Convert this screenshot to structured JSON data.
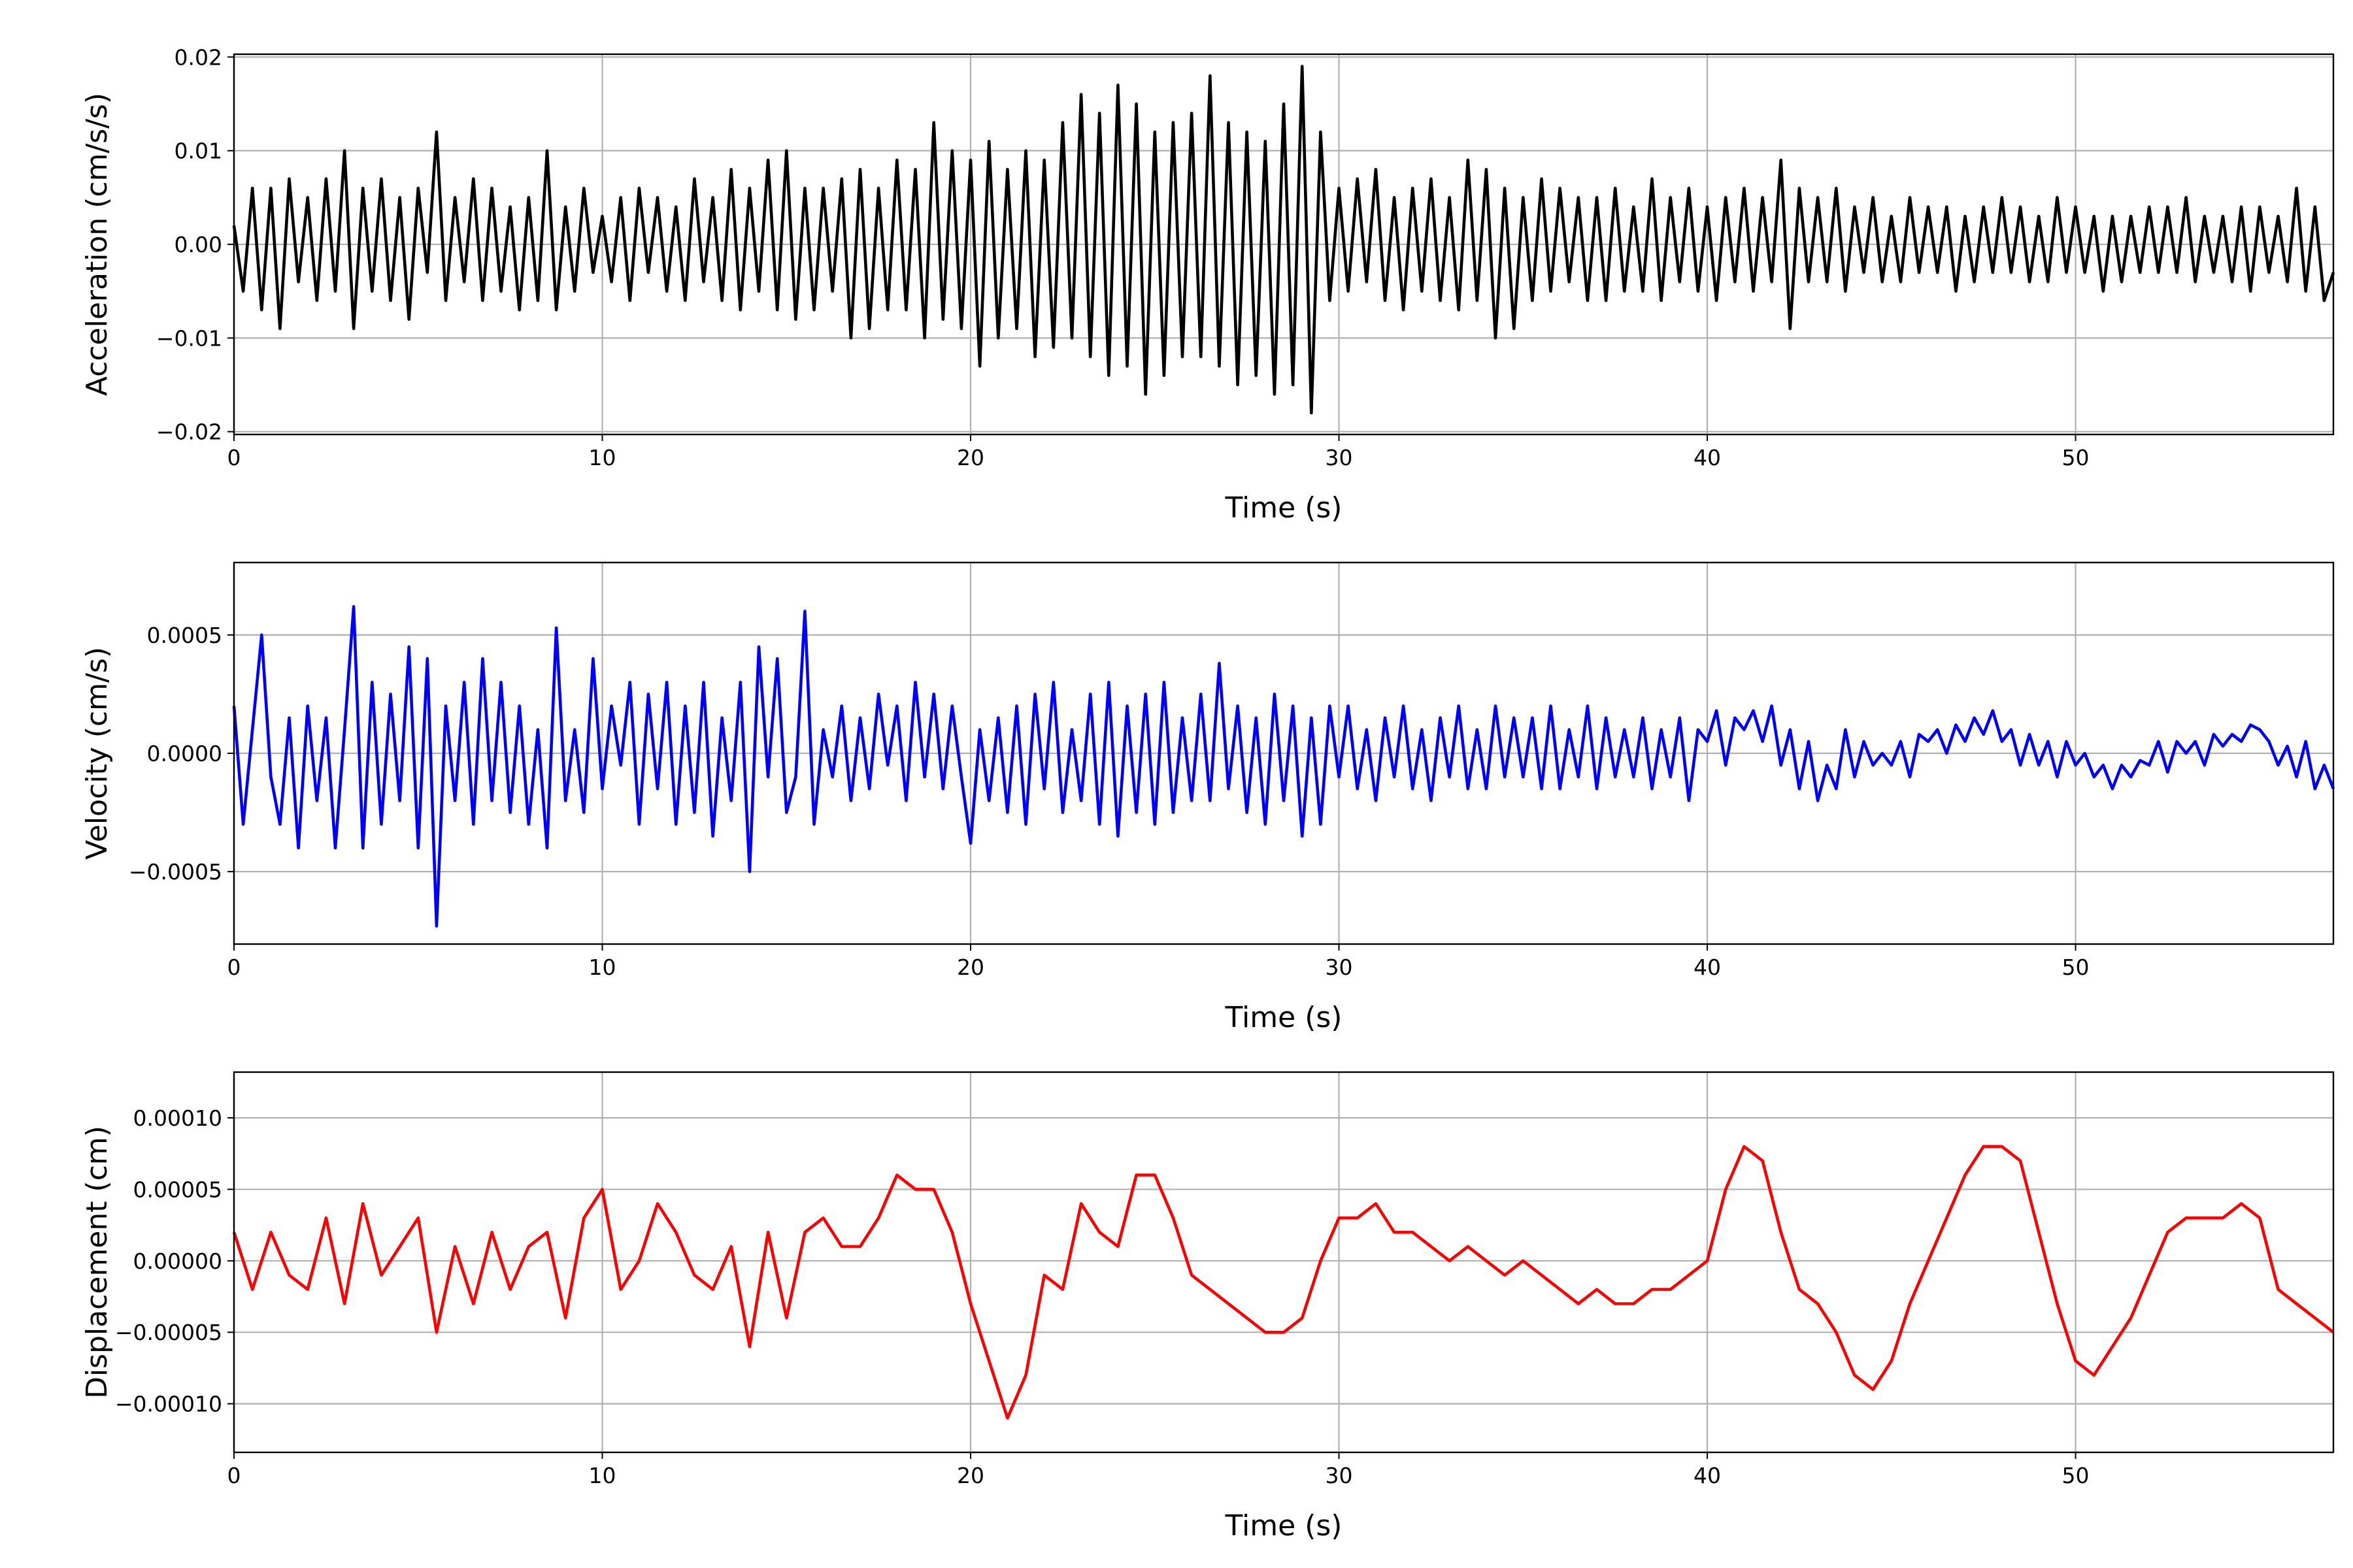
{
  "chart_data": [
    {
      "type": "line",
      "title": "",
      "xlabel": "Time (s)",
      "ylabel": "Acceleration (cm/s/s)",
      "color": "#000000",
      "xlim": [
        0,
        57
      ],
      "ylim": [
        -0.0203,
        0.0203
      ],
      "grid": true,
      "xticks": [
        0,
        10,
        20,
        30,
        40,
        50
      ],
      "xtick_labels": [
        "0",
        "10",
        "20",
        "30",
        "40",
        "50"
      ],
      "yticks": [
        0.02,
        0.01,
        0.0,
        -0.01,
        -0.02
      ],
      "ytick_labels": [
        "0.02",
        "0.01",
        "0.00",
        "−0.01",
        "−0.02"
      ],
      "dt": 0.25,
      "t0": 0,
      "values": [
        0.002,
        -0.005,
        0.006,
        -0.007,
        0.006,
        -0.009,
        0.007,
        -0.004,
        0.005,
        -0.006,
        0.007,
        -0.005,
        0.01,
        -0.009,
        0.006,
        -0.005,
        0.007,
        -0.006,
        0.005,
        -0.008,
        0.006,
        -0.003,
        0.012,
        -0.006,
        0.005,
        -0.004,
        0.007,
        -0.006,
        0.006,
        -0.005,
        0.004,
        -0.007,
        0.005,
        -0.006,
        0.01,
        -0.007,
        0.004,
        -0.005,
        0.006,
        -0.003,
        0.003,
        -0.004,
        0.005,
        -0.006,
        0.006,
        -0.003,
        0.005,
        -0.005,
        0.004,
        -0.006,
        0.007,
        -0.004,
        0.005,
        -0.006,
        0.008,
        -0.007,
        0.006,
        -0.005,
        0.009,
        -0.007,
        0.01,
        -0.008,
        0.006,
        -0.007,
        0.006,
        -0.005,
        0.007,
        -0.01,
        0.008,
        -0.009,
        0.006,
        -0.007,
        0.009,
        -0.007,
        0.008,
        -0.01,
        0.013,
        -0.008,
        0.01,
        -0.009,
        0.009,
        -0.013,
        0.011,
        -0.01,
        0.008,
        -0.009,
        0.01,
        -0.012,
        0.009,
        -0.011,
        0.013,
        -0.01,
        0.016,
        -0.012,
        0.014,
        -0.014,
        0.017,
        -0.013,
        0.015,
        -0.016,
        0.012,
        -0.014,
        0.013,
        -0.012,
        0.014,
        -0.012,
        0.018,
        -0.013,
        0.013,
        -0.015,
        0.012,
        -0.014,
        0.011,
        -0.016,
        0.015,
        -0.015,
        0.019,
        -0.018,
        0.012,
        -0.006,
        0.006,
        -0.005,
        0.007,
        -0.004,
        0.008,
        -0.006,
        0.005,
        -0.007,
        0.006,
        -0.005,
        0.007,
        -0.006,
        0.005,
        -0.007,
        0.009,
        -0.006,
        0.008,
        -0.01,
        0.006,
        -0.009,
        0.005,
        -0.006,
        0.007,
        -0.005,
        0.006,
        -0.004,
        0.005,
        -0.006,
        0.005,
        -0.006,
        0.006,
        -0.005,
        0.004,
        -0.005,
        0.007,
        -0.006,
        0.005,
        -0.004,
        0.006,
        -0.005,
        0.004,
        -0.006,
        0.005,
        -0.004,
        0.006,
        -0.005,
        0.005,
        -0.004,
        0.009,
        -0.009,
        0.006,
        -0.004,
        0.005,
        -0.004,
        0.006,
        -0.005,
        0.004,
        -0.003,
        0.005,
        -0.004,
        0.003,
        -0.004,
        0.005,
        -0.003,
        0.004,
        -0.003,
        0.004,
        -0.005,
        0.003,
        -0.004,
        0.004,
        -0.003,
        0.005,
        -0.003,
        0.004,
        -0.004,
        0.003,
        -0.004,
        0.005,
        -0.003,
        0.004,
        -0.003,
        0.003,
        -0.005,
        0.003,
        -0.004,
        0.003,
        -0.003,
        0.004,
        -0.003,
        0.004,
        -0.003,
        0.005,
        -0.004,
        0.003,
        -0.003,
        0.003,
        -0.004,
        0.004,
        -0.005,
        0.004,
        -0.003,
        0.003,
        -0.004,
        0.006,
        -0.005,
        0.004,
        -0.006,
        -0.003
      ]
    },
    {
      "type": "line",
      "title": "",
      "xlabel": "Time (s)",
      "ylabel": "Velocity (cm/s)",
      "color": "#0000ff",
      "xlim": [
        0,
        57
      ],
      "ylim": [
        -0.000806,
        0.000806
      ],
      "grid": true,
      "xticks": [
        0,
        10,
        20,
        30,
        40,
        50
      ],
      "xtick_labels": [
        "0",
        "10",
        "20",
        "30",
        "40",
        "50"
      ],
      "yticks": [
        0.0005,
        0.0,
        -0.0005
      ],
      "ytick_labels": [
        "0.0005",
        "0.0000",
        "−0.0005"
      ],
      "dt": 0.25,
      "t0": 0,
      "values": [
        0.0002,
        -0.0003,
        0.0001,
        0.0005,
        -0.0001,
        -0.0003,
        0.00015,
        -0.0004,
        0.0002,
        -0.0002,
        0.00015,
        -0.0004,
        0.0001,
        0.00062,
        -0.0004,
        0.0003,
        -0.0003,
        0.00025,
        -0.0002,
        0.00045,
        -0.0004,
        0.0004,
        -0.00073,
        0.0002,
        -0.0002,
        0.0003,
        -0.0003,
        0.0004,
        -0.0002,
        0.0003,
        -0.00025,
        0.0002,
        -0.0003,
        0.0001,
        -0.0004,
        0.00053,
        -0.0002,
        0.0001,
        -0.00025,
        0.0004,
        -0.00015,
        0.0002,
        -5e-05,
        0.0003,
        -0.0003,
        0.00025,
        -0.00015,
        0.0003,
        -0.0003,
        0.0002,
        -0.00025,
        0.0003,
        -0.00035,
        0.00015,
        -0.0002,
        0.0003,
        -0.0005,
        0.00045,
        -0.0001,
        0.0004,
        -0.00025,
        -0.0001,
        0.0006,
        -0.0003,
        0.0001,
        -0.0001,
        0.0002,
        -0.0002,
        0.00015,
        -0.00015,
        0.00025,
        -5e-05,
        0.0002,
        -0.0002,
        0.0003,
        -0.0001,
        0.00025,
        -0.00015,
        0.0002,
        -0.0001,
        -0.00038,
        0.0001,
        -0.0002,
        0.00015,
        -0.00025,
        0.0002,
        -0.0003,
        0.00025,
        -0.00015,
        0.0003,
        -0.00025,
        0.0001,
        -0.0002,
        0.00025,
        -0.0003,
        0.0003,
        -0.00035,
        0.0002,
        -0.00025,
        0.00025,
        -0.0003,
        0.0003,
        -0.00025,
        0.00015,
        -0.0002,
        0.00025,
        -0.0002,
        0.00038,
        -0.00015,
        0.0002,
        -0.00025,
        0.00015,
        -0.0003,
        0.00025,
        -0.0002,
        0.0002,
        -0.00035,
        0.00015,
        -0.0003,
        0.0002,
        -0.0001,
        0.0002,
        -0.00015,
        0.0001,
        -0.0002,
        0.00015,
        -0.0001,
        0.0002,
        -0.00015,
        0.0001,
        -0.0002,
        0.00015,
        -0.0001,
        0.0002,
        -0.00015,
        0.0001,
        -0.00015,
        0.0002,
        -0.0001,
        0.00015,
        -0.0001,
        0.00015,
        -0.00015,
        0.0002,
        -0.00015,
        0.0001,
        -0.0001,
        0.0002,
        -0.00015,
        0.00015,
        -0.0001,
        0.0001,
        -0.0001,
        0.00015,
        -0.00015,
        0.0001,
        -0.0001,
        0.00015,
        -0.0002,
        0.0001,
        5e-05,
        0.00018,
        -5e-05,
        0.00015,
        0.0001,
        0.00018,
        5e-05,
        0.0002,
        -5e-05,
        0.0001,
        -0.00015,
        5e-05,
        -0.0002,
        -5e-05,
        -0.00015,
        0.0001,
        -0.0001,
        5e-05,
        -5e-05,
        0,
        -5e-05,
        5e-05,
        -0.0001,
        8e-05,
        5e-05,
        0.0001,
        0,
        0.00012,
        5e-05,
        0.00015,
        8e-05,
        0.00018,
        5e-05,
        0.0001,
        -5e-05,
        8e-05,
        -5e-05,
        5e-05,
        -0.0001,
        5e-05,
        -5e-05,
        0,
        -0.0001,
        -5e-05,
        -0.00015,
        -5e-05,
        -0.0001,
        -3e-05,
        -5e-05,
        5e-05,
        -8e-05,
        5e-05,
        0,
        5e-05,
        -5e-05,
        8e-05,
        3e-05,
        8e-05,
        5e-05,
        0.00012,
        0.0001,
        5e-05,
        -5e-05,
        3e-05,
        -0.0001,
        5e-05,
        -0.00015,
        -5e-05,
        -0.00015
      ]
    },
    {
      "type": "line",
      "title": "",
      "xlabel": "Time (s)",
      "ylabel": "Displacement (cm)",
      "color": "#ff0000",
      "xlim": [
        0,
        57
      ],
      "ylim": [
        -0.000134,
        0.000132
      ],
      "grid": true,
      "xticks": [
        0,
        10,
        20,
        30,
        40,
        50
      ],
      "xtick_labels": [
        "0",
        "10",
        "20",
        "30",
        "40",
        "50"
      ],
      "yticks": [
        0.0001,
        5e-05,
        0.0,
        -5e-05,
        -0.0001
      ],
      "ytick_labels": [
        "0.00010",
        "0.00005",
        "0.00000",
        "−0.00005",
        "−0.00010"
      ],
      "dt": 0.5,
      "t0": 0,
      "values": [
        2e-05,
        -2e-05,
        2e-05,
        -1e-05,
        -2e-05,
        3e-05,
        -3e-05,
        4e-05,
        -1e-05,
        1e-05,
        3e-05,
        -5e-05,
        1e-05,
        -3e-05,
        2e-05,
        -2e-05,
        1e-05,
        2e-05,
        -4e-05,
        3e-05,
        5e-05,
        -2e-05,
        0,
        4e-05,
        2e-05,
        -1e-05,
        -2e-05,
        1e-05,
        -6e-05,
        2e-05,
        -4e-05,
        2e-05,
        3e-05,
        1e-05,
        1e-05,
        3e-05,
        6e-05,
        5e-05,
        5e-05,
        2e-05,
        -3e-05,
        -7e-05,
        -0.00011,
        -8e-05,
        -1e-05,
        -2e-05,
        4e-05,
        2e-05,
        1e-05,
        6e-05,
        6e-05,
        3e-05,
        -1e-05,
        -2e-05,
        -3e-05,
        -4e-05,
        -5e-05,
        -5e-05,
        -4e-05,
        0,
        3e-05,
        3e-05,
        4e-05,
        2e-05,
        2e-05,
        1e-05,
        0,
        1e-05,
        0,
        -1e-05,
        0,
        -1e-05,
        -2e-05,
        -3e-05,
        -2e-05,
        -3e-05,
        -3e-05,
        -2e-05,
        -2e-05,
        -1e-05,
        0,
        5e-05,
        8e-05,
        7e-05,
        2e-05,
        -2e-05,
        -3e-05,
        -5e-05,
        -8e-05,
        -9e-05,
        -7e-05,
        -3e-05,
        0,
        3e-05,
        6e-05,
        8e-05,
        8e-05,
        7e-05,
        2e-05,
        -3e-05,
        -7e-05,
        -8e-05,
        -6e-05,
        -4e-05,
        -1e-05,
        2e-05,
        3e-05,
        3e-05,
        3e-05,
        4e-05,
        3e-05,
        -2e-05,
        -3e-05,
        -4e-05,
        -5e-05
      ]
    }
  ]
}
